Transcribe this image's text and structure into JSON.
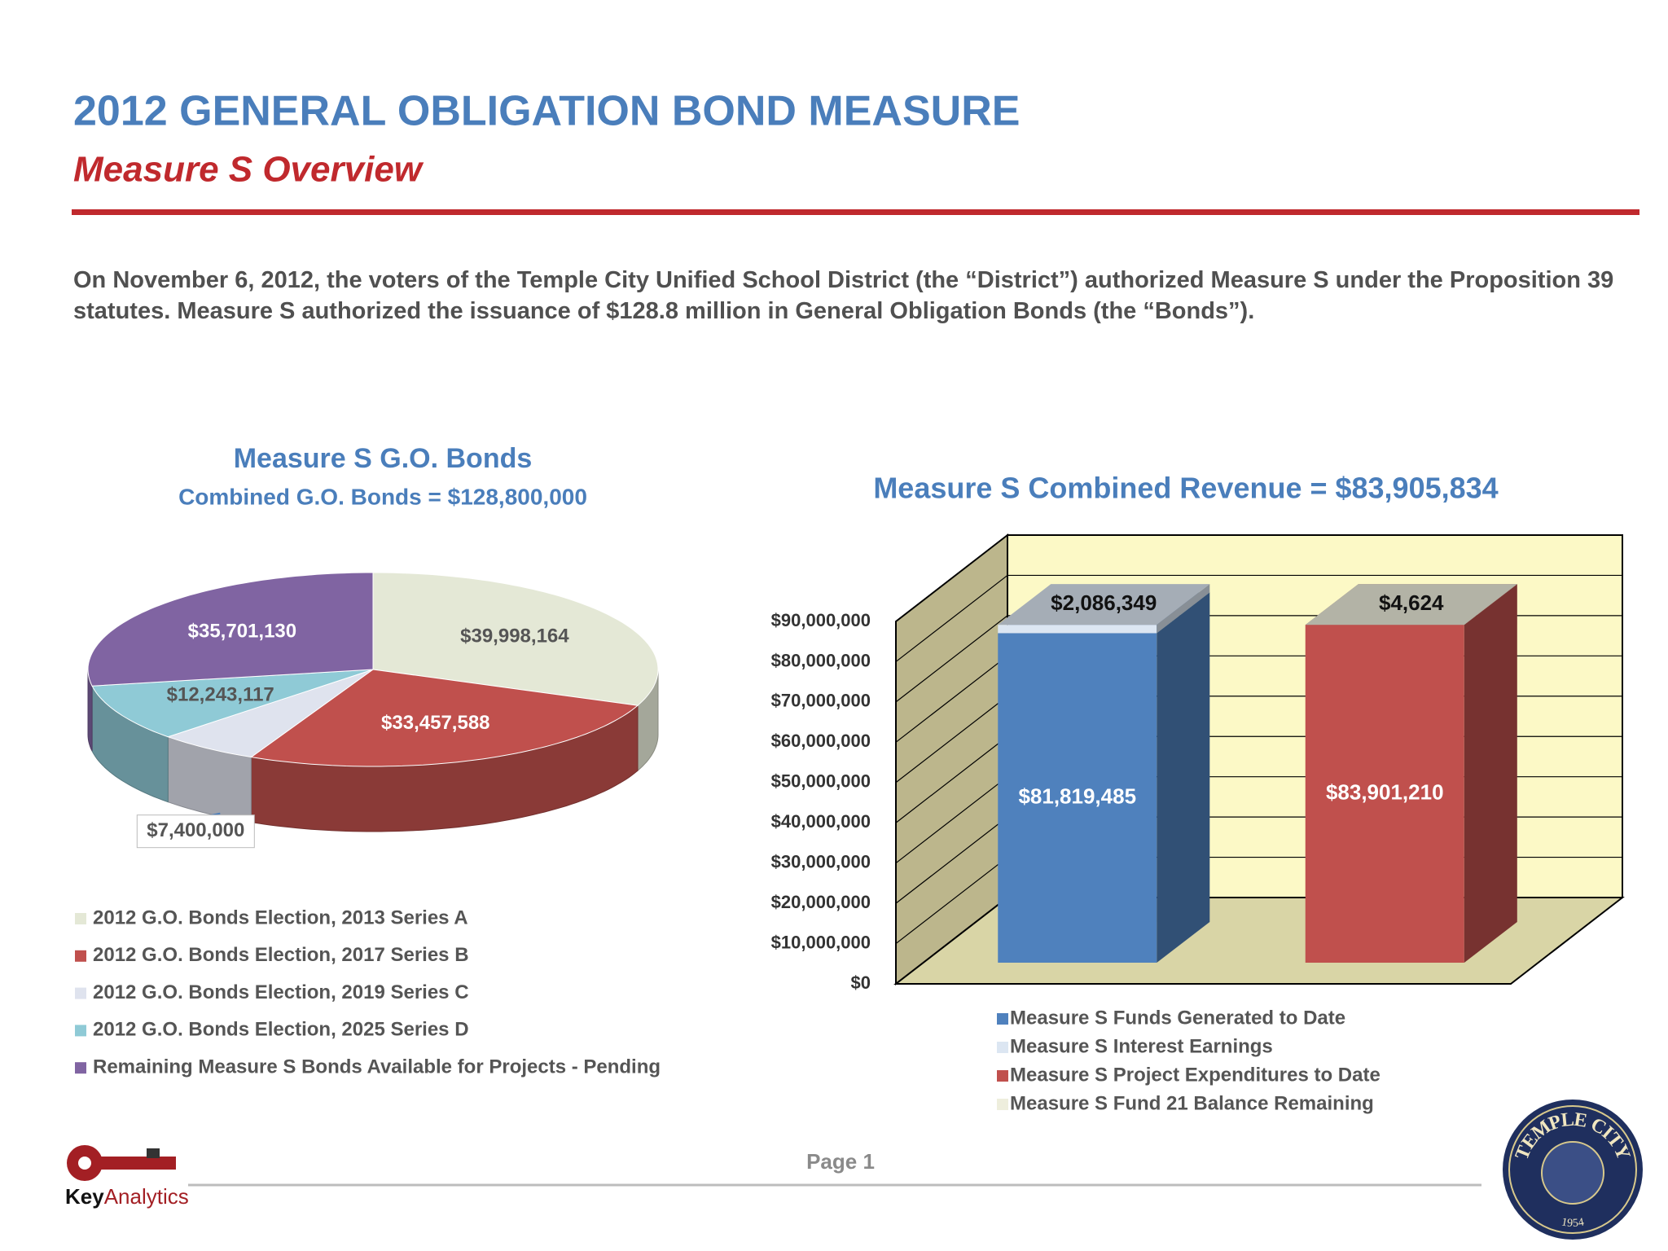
{
  "header": {
    "title": "2012 GENERAL OBLIGATION BOND MEASURE",
    "subtitle": "Measure S Overview"
  },
  "intro": "On November 6, 2012, the voters of the Temple City Unified School District (the “District”) authorized Measure S under the Proposition 39 statutes.  Measure S authorized the issuance of $128.8 million in General Obligation Bonds (the “Bonds”).",
  "chart_data": [
    {
      "type": "pie",
      "title": "Measure S G.O. Bonds",
      "subtitle": "Combined G.O. Bonds = $128,800,000",
      "categories": [
        "2012 G.O. Bonds Election, 2013 Series A",
        "2012 G.O. Bonds Election, 2017 Series B",
        "2012 G.O. Bonds Election, 2019 Series C",
        "2012 G.O. Bonds Election, 2025 Series D",
        "Remaining Measure S Bonds Available for Projects - Pending"
      ],
      "values": [
        39998164,
        33457588,
        7400000,
        12243117,
        35701130
      ],
      "value_labels": [
        "$39,998,164",
        "$33,457,588",
        "$7,400,000",
        "$12,243,117",
        "$35,701,130"
      ],
      "colors": [
        "#e4e8d6",
        "#c0504d",
        "#dfe3ee",
        "#8fcad6",
        "#8064a2"
      ]
    },
    {
      "type": "bar",
      "stacked": true,
      "title": "Measure S Combined Revenue = $83,905,834",
      "categories": [
        null,
        null
      ],
      "series": [
        {
          "name": "Measure S Funds Generated to Date",
          "color": "#4f81bd",
          "values": [
            81819485,
            null
          ],
          "value_labels": [
            "$81,819,485",
            null
          ]
        },
        {
          "name": "Measure S Interest Earnings",
          "color": "#dce6f2",
          "values": [
            2086349,
            null
          ],
          "value_labels": [
            "$2,086,349",
            null
          ]
        },
        {
          "name": "Measure S Project Expenditures to Date",
          "color": "#c0504d",
          "values": [
            null,
            83901210
          ],
          "value_labels": [
            null,
            "$83,901,210"
          ]
        },
        {
          "name": "Measure S Fund 21 Balance Remaining",
          "color": "#eeeedd",
          "values": [
            null,
            4624
          ],
          "value_labels": [
            null,
            "$4,624"
          ]
        }
      ],
      "ylim": [
        0,
        90000000
      ],
      "yticks": [
        {
          "value": 0,
          "label": "$0"
        },
        {
          "value": 10000000,
          "label": "$10,000,000"
        },
        {
          "value": 20000000,
          "label": "$20,000,000"
        },
        {
          "value": 30000000,
          "label": "$30,000,000"
        },
        {
          "value": 40000000,
          "label": "$40,000,000"
        },
        {
          "value": 50000000,
          "label": "$50,000,000"
        },
        {
          "value": 60000000,
          "label": "$60,000,000"
        },
        {
          "value": 70000000,
          "label": "$70,000,000"
        },
        {
          "value": 80000000,
          "label": "$80,000,000"
        },
        {
          "value": 90000000,
          "label": "$90,000,000"
        }
      ],
      "grid": true
    }
  ],
  "footer": {
    "page": "Page 1",
    "logo_key": "Key",
    "logo_analytics": "Analytics",
    "seal_name": "TEMPLE CITY",
    "seal_year": "1954"
  }
}
